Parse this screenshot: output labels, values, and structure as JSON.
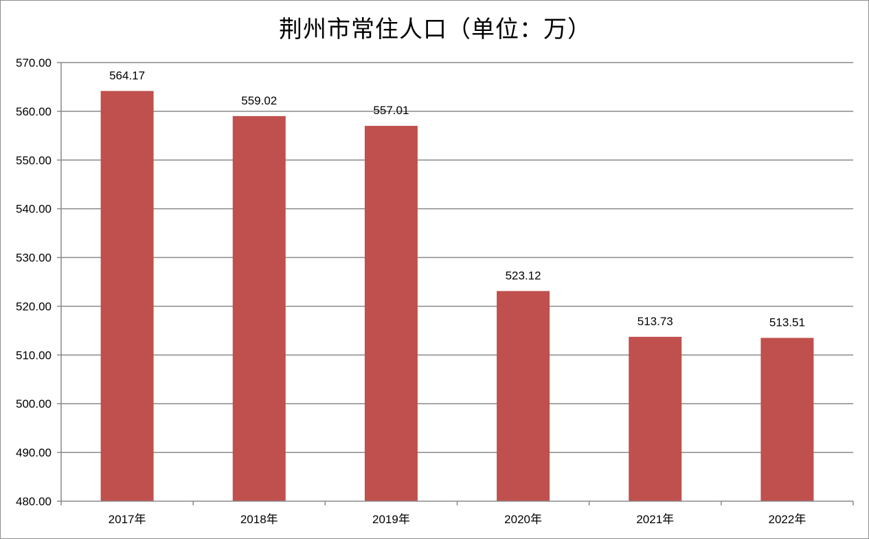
{
  "chart_data": {
    "type": "bar",
    "title": "荆州市常住人口（单位：万）",
    "categories": [
      "2017年",
      "2018年",
      "2019年",
      "2020年",
      "2021年",
      "2022年"
    ],
    "values": [
      564.17,
      559.02,
      557.01,
      523.12,
      513.73,
      513.51
    ],
    "data_labels": [
      "564.17",
      "559.02",
      "557.01",
      "523.12",
      "513.73",
      "513.51"
    ],
    "y_ticks": [
      "480.00",
      "490.00",
      "500.00",
      "510.00",
      "520.00",
      "530.00",
      "540.00",
      "550.00",
      "560.00",
      "570.00"
    ],
    "ylim": [
      480,
      570
    ],
    "xlabel": "",
    "ylabel": "",
    "grid": true,
    "legend": "none",
    "bar_color": "#c0504d",
    "grid_color": "#888888"
  }
}
